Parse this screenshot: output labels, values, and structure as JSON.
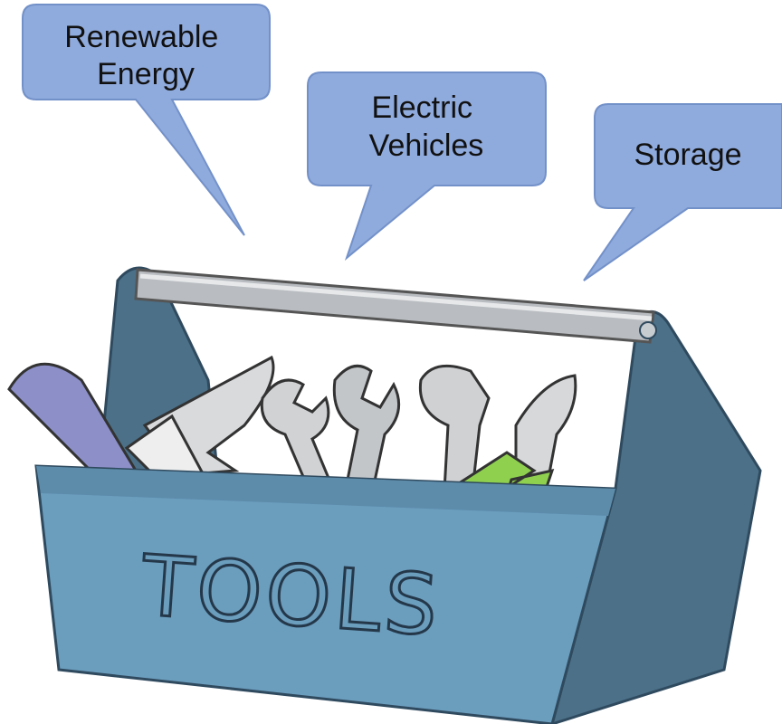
{
  "bubbles": [
    {
      "lines": [
        "Renewable",
        "Energy"
      ]
    },
    {
      "lines": [
        "Electric",
        "Vehicles"
      ]
    },
    {
      "lines": [
        "Storage"
      ]
    }
  ],
  "box": {
    "label": "TOOLS"
  }
}
